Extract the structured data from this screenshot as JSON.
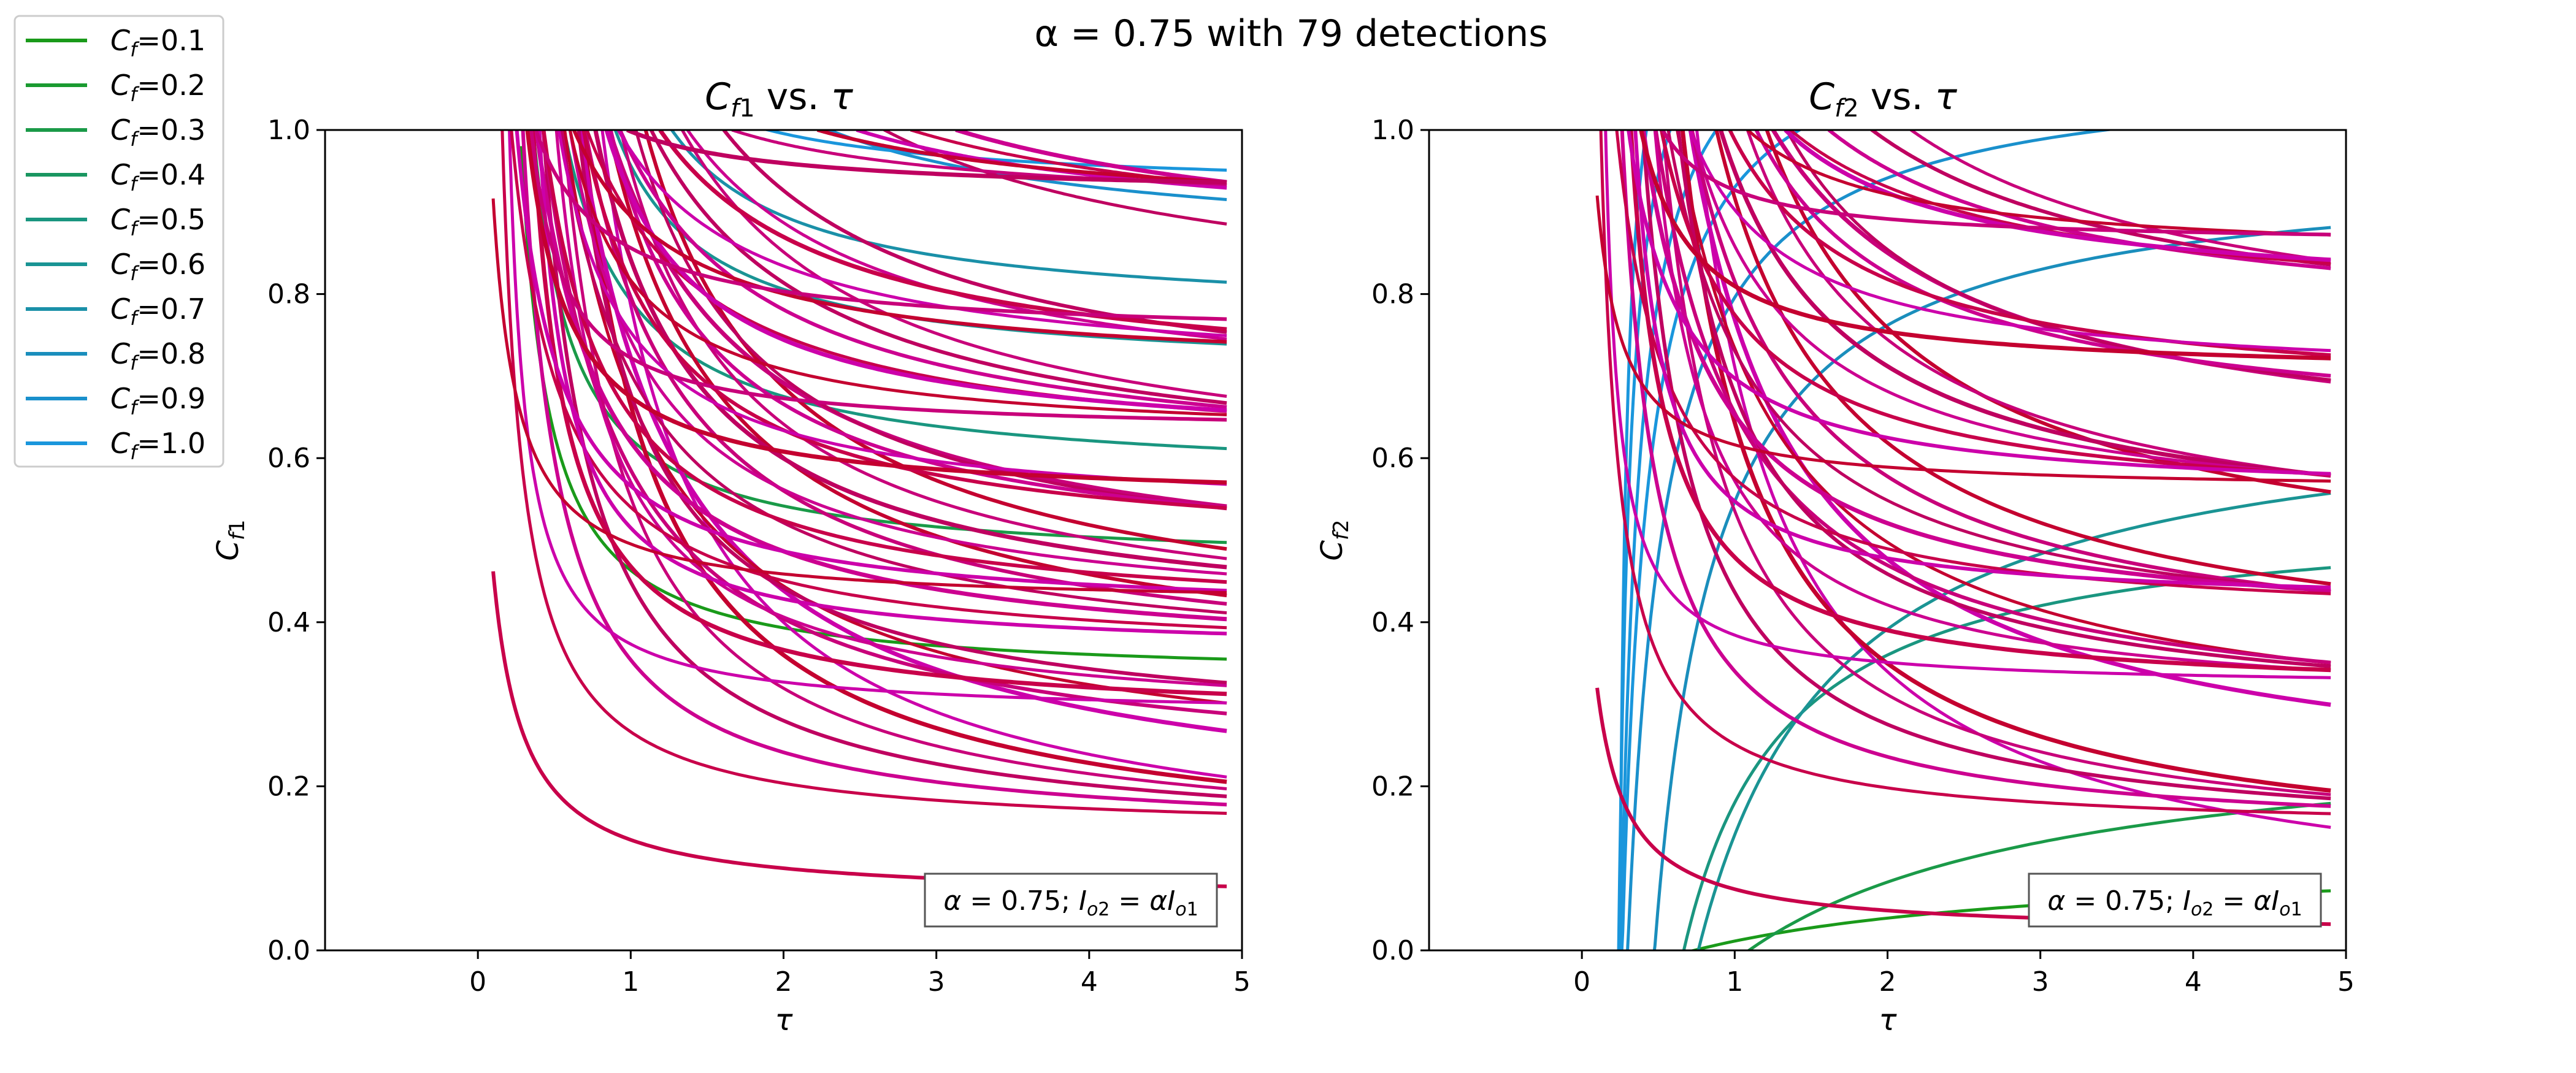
{
  "figure": {
    "suptitle": "α = 0.75 with 79 detections"
  },
  "legend": {
    "placement": "outside-upper-left",
    "entries": [
      {
        "label": "=0.1",
        "value": 0.1,
        "color": "#1a9a1a"
      },
      {
        "label": "=0.2",
        "value": 0.2,
        "color": "#1a9a30"
      },
      {
        "label": "=0.3",
        "value": 0.3,
        "color": "#1a9a48"
      },
      {
        "label": "=0.4",
        "value": 0.4,
        "color": "#1a9660"
      },
      {
        "label": "=0.5",
        "value": 0.5,
        "color": "#1a9680"
      },
      {
        "label": "=0.6",
        "value": 0.6,
        "color": "#1a9494"
      },
      {
        "label": "=0.7",
        "value": 0.7,
        "color": "#1a90a8"
      },
      {
        "label": "=0.8",
        "value": 0.8,
        "color": "#1a8ebc"
      },
      {
        "label": "=0.9",
        "value": 0.9,
        "color": "#1a90cc"
      },
      {
        "label": "=1.0",
        "value": 1.0,
        "color": "#1a96dc"
      }
    ]
  },
  "chart_data": [
    {
      "type": "line",
      "title": "C_f1 vs. τ",
      "xlabel": "τ",
      "ylabel": "C_f1",
      "xlim": [
        -1.0,
        5.0
      ],
      "ylim": [
        0.0,
        1.0
      ],
      "xticks": [
        "0",
        "1",
        "2",
        "3",
        "4",
        "5"
      ],
      "yticks": [
        "0.0",
        "0.2",
        "0.4",
        "0.6",
        "0.8",
        "1.0"
      ],
      "grid": false,
      "annotation": "α = 0.75; I_o2 = αI_o1",
      "family_model": "y = A + k/(τ − τ0), clipped to [0,1], τ from 0.1 to 4.9",
      "cf_families": [
        {
          "cf": 0.1,
          "A": 0.33,
          "k": 0.12,
          "t0": 0.1
        },
        {
          "cf": 0.3,
          "A": 0.468,
          "k": 0.14,
          "t0": 0.1
        },
        {
          "cf": 0.5,
          "A": 0.57,
          "k": 0.2,
          "t0": 0.1
        },
        {
          "cf": 0.6,
          "A": 0.7,
          "k": 0.18,
          "t0": 0.3
        },
        {
          "cf": 0.7,
          "A": 0.77,
          "k": 0.2,
          "t0": 0.4
        },
        {
          "cf": 0.9,
          "A": 0.85,
          "k": 0.3,
          "t0": 0.3
        },
        {
          "cf": 1.0,
          "A": 0.925,
          "k": 0.12,
          "t0": 0.3
        }
      ],
      "detection_curves_A": [
        0.062,
        0.095,
        0.108,
        0.118,
        0.127,
        0.135,
        0.142,
        0.148,
        0.2,
        0.205,
        0.255,
        0.27,
        0.278,
        0.285,
        0.32,
        0.328,
        0.335,
        0.345,
        0.352,
        0.36,
        0.365,
        0.372,
        0.38,
        0.39,
        0.398,
        0.405,
        0.42,
        0.432,
        0.44,
        0.46,
        0.478,
        0.525,
        0.545,
        0.555,
        0.565,
        0.578,
        0.59,
        0.605,
        0.618,
        0.63,
        0.64,
        0.65,
        0.68,
        0.69,
        0.7,
        0.745,
        0.76,
        0.83,
        0.845,
        0.86,
        0.885,
        0.9,
        0.92
      ]
    },
    {
      "type": "line",
      "title": "C_f2 vs. τ",
      "xlabel": "τ",
      "ylabel": "C_f2",
      "xlim": [
        -1.0,
        5.0
      ],
      "ylim": [
        0.0,
        1.0
      ],
      "xticks": [
        "0",
        "1",
        "2",
        "3",
        "4",
        "5"
      ],
      "yticks": [
        "0.0",
        "0.2",
        "0.4",
        "0.6",
        "0.8",
        "1.0"
      ],
      "grid": false,
      "annotation": "α = 0.75; I_o2 = αI_o1",
      "family_model": "y = B − k/(τ − τ0), clipped to [0,1], τ up to 4.9",
      "cf_families": [
        {
          "cf": 0.1,
          "B": 0.115,
          "k": 0.28,
          "t0": -1.7
        },
        {
          "cf": 0.3,
          "B": 0.28,
          "k": 0.6,
          "t0": -1.05
        },
        {
          "cf": 0.5,
          "B": 0.54,
          "k": 0.36,
          "t0": 0.0
        },
        {
          "cf": 0.6,
          "B": 0.68,
          "k": 0.62,
          "t0": -0.15
        },
        {
          "cf": 0.8,
          "B": 0.96,
          "k": 0.38,
          "t0": 0.08
        },
        {
          "cf": 0.9,
          "B": 1.08,
          "k": 0.27,
          "t0": 0.05
        },
        {
          "cf": 1.0,
          "B": 1.15,
          "k": 0.2,
          "t0": 0.09
        },
        {
          "cf": 1.0,
          "B": 1.2,
          "k": 0.15,
          "t0": 0.13
        },
        {
          "cf": 1.0,
          "B": 1.24,
          "k": 0.1,
          "t0": 0.16
        },
        {
          "cf": 1.0,
          "B": 1.27,
          "k": 0.06,
          "t0": 0.2
        }
      ],
      "detection_curves_A": [
        0.02,
        0.03,
        0.095,
        0.11,
        0.125,
        0.135,
        0.145,
        0.175,
        0.245,
        0.265,
        0.275,
        0.29,
        0.31,
        0.32,
        0.33,
        0.34,
        0.36,
        0.38,
        0.395,
        0.42,
        0.43,
        0.47,
        0.49,
        0.51,
        0.53,
        0.55,
        0.56,
        0.58,
        0.595,
        0.62,
        0.665,
        0.69,
        0.7,
        0.715,
        0.73,
        0.745,
        0.77,
        0.79,
        0.84,
        0.86,
        0.905,
        0.945
      ]
    }
  ]
}
